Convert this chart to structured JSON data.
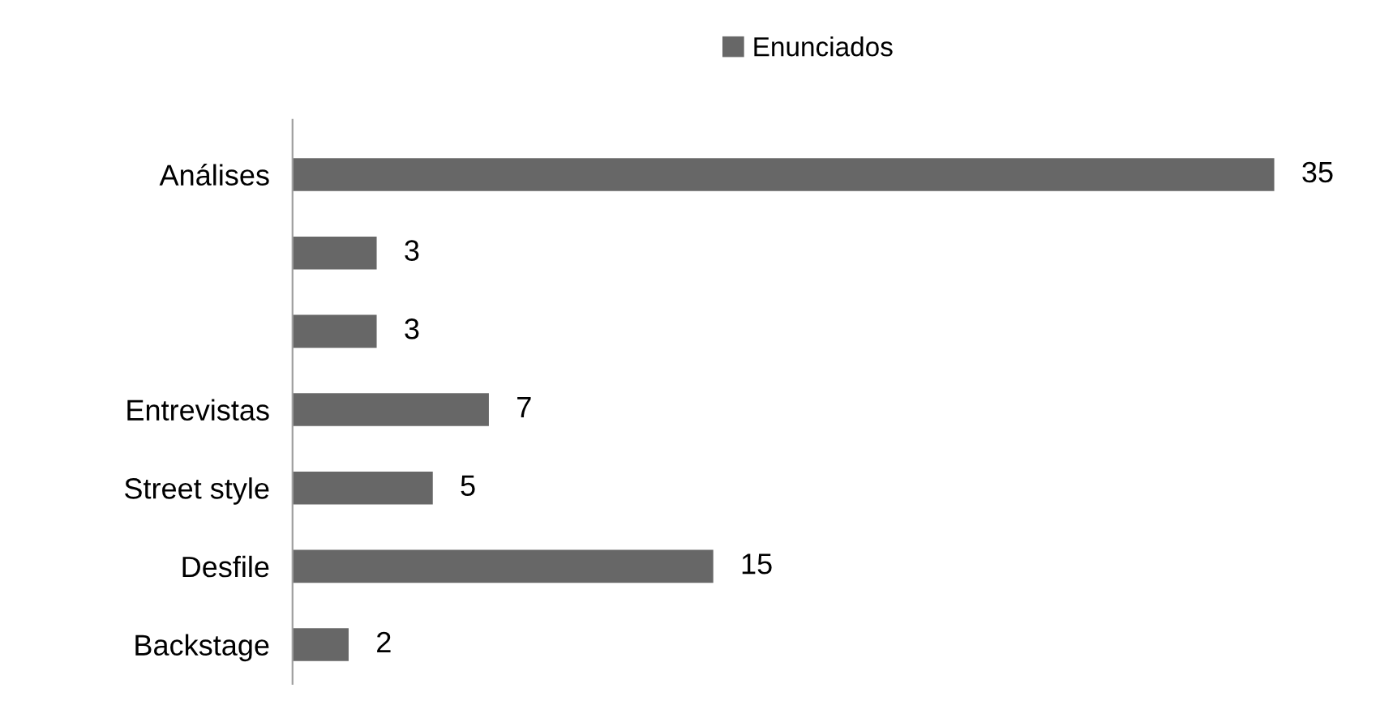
{
  "chart_data": {
    "type": "bar",
    "orientation": "horizontal",
    "categories": [
      "Análises",
      null,
      null,
      "Entrevistas",
      "Street style",
      "Desfile",
      "Backstage"
    ],
    "series": [
      {
        "name": "Enunciados",
        "color": "#676767",
        "values": [
          35,
          3,
          3,
          7,
          5,
          15,
          2
        ]
      }
    ],
    "data_labels": true,
    "legend": "top",
    "grid": false
  }
}
